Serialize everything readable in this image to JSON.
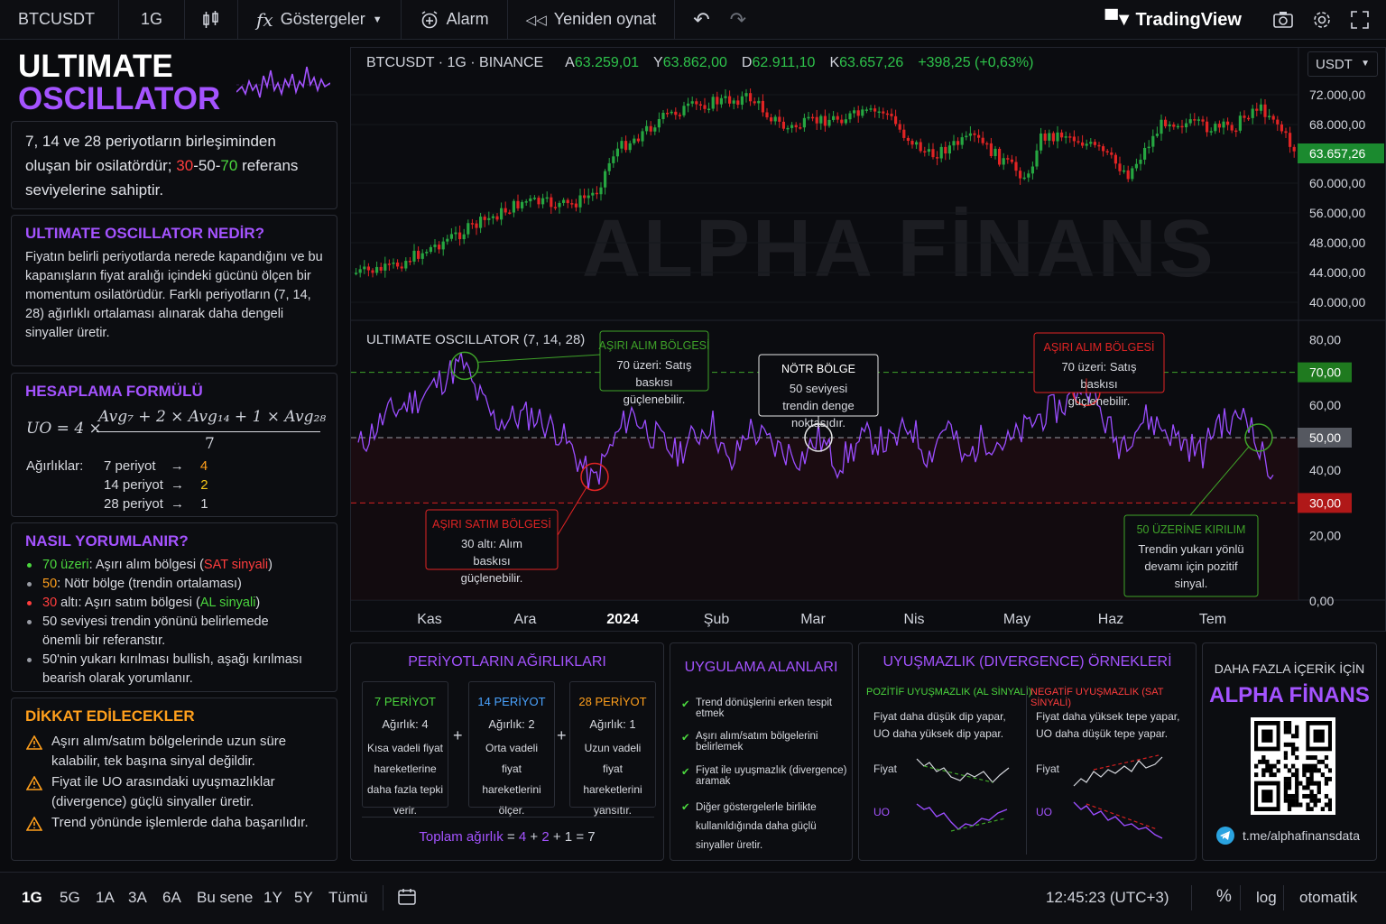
{
  "topbar": {
    "symbol": "BTCUSDT",
    "interval": "1G",
    "indicators_label": "Göstergeler",
    "alarm_label": "Alarm",
    "replay_label": "Yeniden oynat",
    "brand": "TradingView"
  },
  "header": {
    "line1": "ULTIMATE",
    "line2": "OSCILLATOR"
  },
  "intro": {
    "text1": "7, 14 ve 28 periyotların birleşiminden oluşan bir osilatördür; ",
    "n30": "30",
    "dash1": "-50-",
    "n70": "70",
    "text2": " referans seviyelerine sahiptir."
  },
  "what": {
    "title": "ULTIMATE OSCILLATOR NEDİR?",
    "body": "Fiyatın belirli periyotlarda nerede kapandığını ve bu kapanışların fiyat aralığı içindeki gücünü ölçen bir momentum osilatörüdür. Farklı periyotların (7, 14, 28) ağırlıklı ortalaması alınarak daha dengeli sinyaller üretir."
  },
  "formula": {
    "title": "HESAPLAMA FORMÜLÜ",
    "lhs": "UO = 4 ×",
    "numerator": "Avg₇ + 2 × Avg₁₄ + 1 × Avg₂₈",
    "denominator": "7",
    "weights_label": "Ağırlıklar:",
    "rows": [
      {
        "period": "7 periyot",
        "arrow": "→",
        "weight": "4"
      },
      {
        "period": "14 periyot",
        "arrow": "→",
        "weight": "2"
      },
      {
        "period": "28 periyot",
        "arrow": "→",
        "weight": "1"
      }
    ]
  },
  "interpret": {
    "title": "NASIL YORUMLANIR?",
    "i1a": "70 üzeri",
    "i1b": ": Aşırı alım bölgesi (",
    "i1c": "SAT sinyali",
    "i1d": ")",
    "i2a": "50",
    "i2b": ": Nötr bölge (trendin ortalaması)",
    "i3a": "30",
    "i3b": " altı: Aşırı satım bölgesi (",
    "i3c": "AL sinyali",
    "i3d": ")",
    "i4": "50 seviyesi trendin yönünü belirlemede önemli bir referanstır.",
    "i5": "50'nin yukarı kırılması bullish, aşağı kırılması bearish olarak yorumlanır."
  },
  "caution": {
    "title": "DİKKAT EDİLECEKLER",
    "items": [
      "Aşırı alım/satım bölgelerinde uzun süre kalabilir, tek başına sinyal değildir.",
      "Fiyat ile UO arasındaki uyuşmazlıklar (divergence) güçlü sinyaller üretir.",
      "Trend yönünde işlemlerde daha başarılıdır."
    ]
  },
  "chart": {
    "legend": {
      "pair": "BTCUSDT · 1G · BINANCE",
      "a_l": "A",
      "a": "63.259,01",
      "y_l": "Y",
      "y": "63.862,00",
      "d_l": "D",
      "d": "62.911,10",
      "k_l": "K",
      "k": "63.657,26",
      "chg": "+398,25 (+0,63%)"
    },
    "currency": "USDT",
    "watermark": "ALPHA FİNANS",
    "price_ticks": [
      "72.000,00",
      "68.000,00",
      "60.000,00",
      "56.000,00",
      "48.000,00",
      "44.000,00",
      "40.000,00"
    ],
    "last_price": "63.657,26",
    "osc_title": "ULTIMATE OSCILLATOR (7, 14, 28)",
    "osc_ticks": [
      "80,00",
      "60,00",
      "40,00",
      "20,00",
      "0,00"
    ],
    "osc_levels": [
      "70,00",
      "50,00",
      "30,00"
    ],
    "months": [
      "Kas",
      "Ara",
      "2024",
      "Şub",
      "Mar",
      "Nis",
      "May",
      "Haz",
      "Tem"
    ],
    "colors": {
      "up": "#26a641",
      "down": "#e02424",
      "line": "#9b4dff",
      "ob": "#3fa329",
      "os": "#d42020"
    },
    "callouts": {
      "ob1": {
        "title": "AŞIRI ALIM BÖLGESİ",
        "body": "70 üzeri: Satış baskısı güçlenebilir."
      },
      "neutral": {
        "title": "NÖTR BÖLGE",
        "body": "50 seviyesi trendin denge noktasıdır."
      },
      "ob2": {
        "title": "AŞIRI ALIM BÖLGESİ",
        "body": "70 üzeri: Satış baskısı güçlenebilir."
      },
      "os": {
        "title": "AŞIRI SATIM BÖLGESİ",
        "body": "30 altı: Alım baskısı güçlenebilir."
      },
      "break": {
        "title": "50 ÜZERİNE KIRILIM",
        "body": "Trendin yukarı yönlü devamı için pozitif sinyal."
      }
    }
  },
  "weights_panel": {
    "title": "PERİYOTLARIN AĞIRLIKLARI",
    "boxes": [
      {
        "title": "7 PERİYOT",
        "weight": "Ağırlık: 4",
        "desc": "Kısa vadeli fiyat hareketlerine daha fazla tepki verir."
      },
      {
        "title": "14 PERİYOT",
        "weight": "Ağırlık: 2",
        "desc": "Orta vadeli fiyat hareketlerini ölçer."
      },
      {
        "title": "28 PERİYOT",
        "weight": "Ağırlık: 1",
        "desc": "Uzun vadeli fiyat hareketlerini yansıtır."
      }
    ],
    "total_label": "Toplam ağırlık",
    "eq": "=",
    "w4": "4",
    "p1": "+",
    "w2": "2",
    "p2": "+",
    "w1": "1",
    "eq2": "=",
    "total": "7"
  },
  "usage": {
    "title": "UYGULAMA ALANLARI",
    "items": [
      "Trend dönüşlerini erken tespit etmek",
      "Aşırı alım/satım bölgelerini belirlemek",
      "Fiyat ile uyuşmazlık (divergence) aramak",
      "Diğer göstergelerle birlikte kullanıldığında daha güçlü sinyaller üretir."
    ]
  },
  "divergence": {
    "title": "UYUŞMAZLIK (DIVERGENCE) ÖRNEKLERİ",
    "pos_title": "POZİTİF UYUŞMAZLIK (AL SİNYALİ)",
    "pos_desc": "Fiyat daha düşük dip yapar, UO daha yüksek dip yapar.",
    "neg_title": "NEGATİF UYUŞMAZLIK (SAT SİNYALİ)",
    "neg_desc": "Fiyat daha yüksek tepe yapar, UO daha düşük tepe yapar.",
    "price_label": "Fiyat",
    "uo_label": "UO"
  },
  "promo": {
    "line1": "DAHA FAZLA İÇERİK İÇİN",
    "brand": "ALPHA FİNANS",
    "telegram": "t.me/alphafinansdata"
  },
  "bottombar": {
    "ranges": [
      "1G",
      "5G",
      "1A",
      "3A",
      "6A",
      "Bu sene",
      "1Y",
      "5Y",
      "Tümü"
    ],
    "time": "12:45:23 (UTC+3)",
    "percent": "%",
    "log": "log",
    "auto": "otomatik"
  }
}
